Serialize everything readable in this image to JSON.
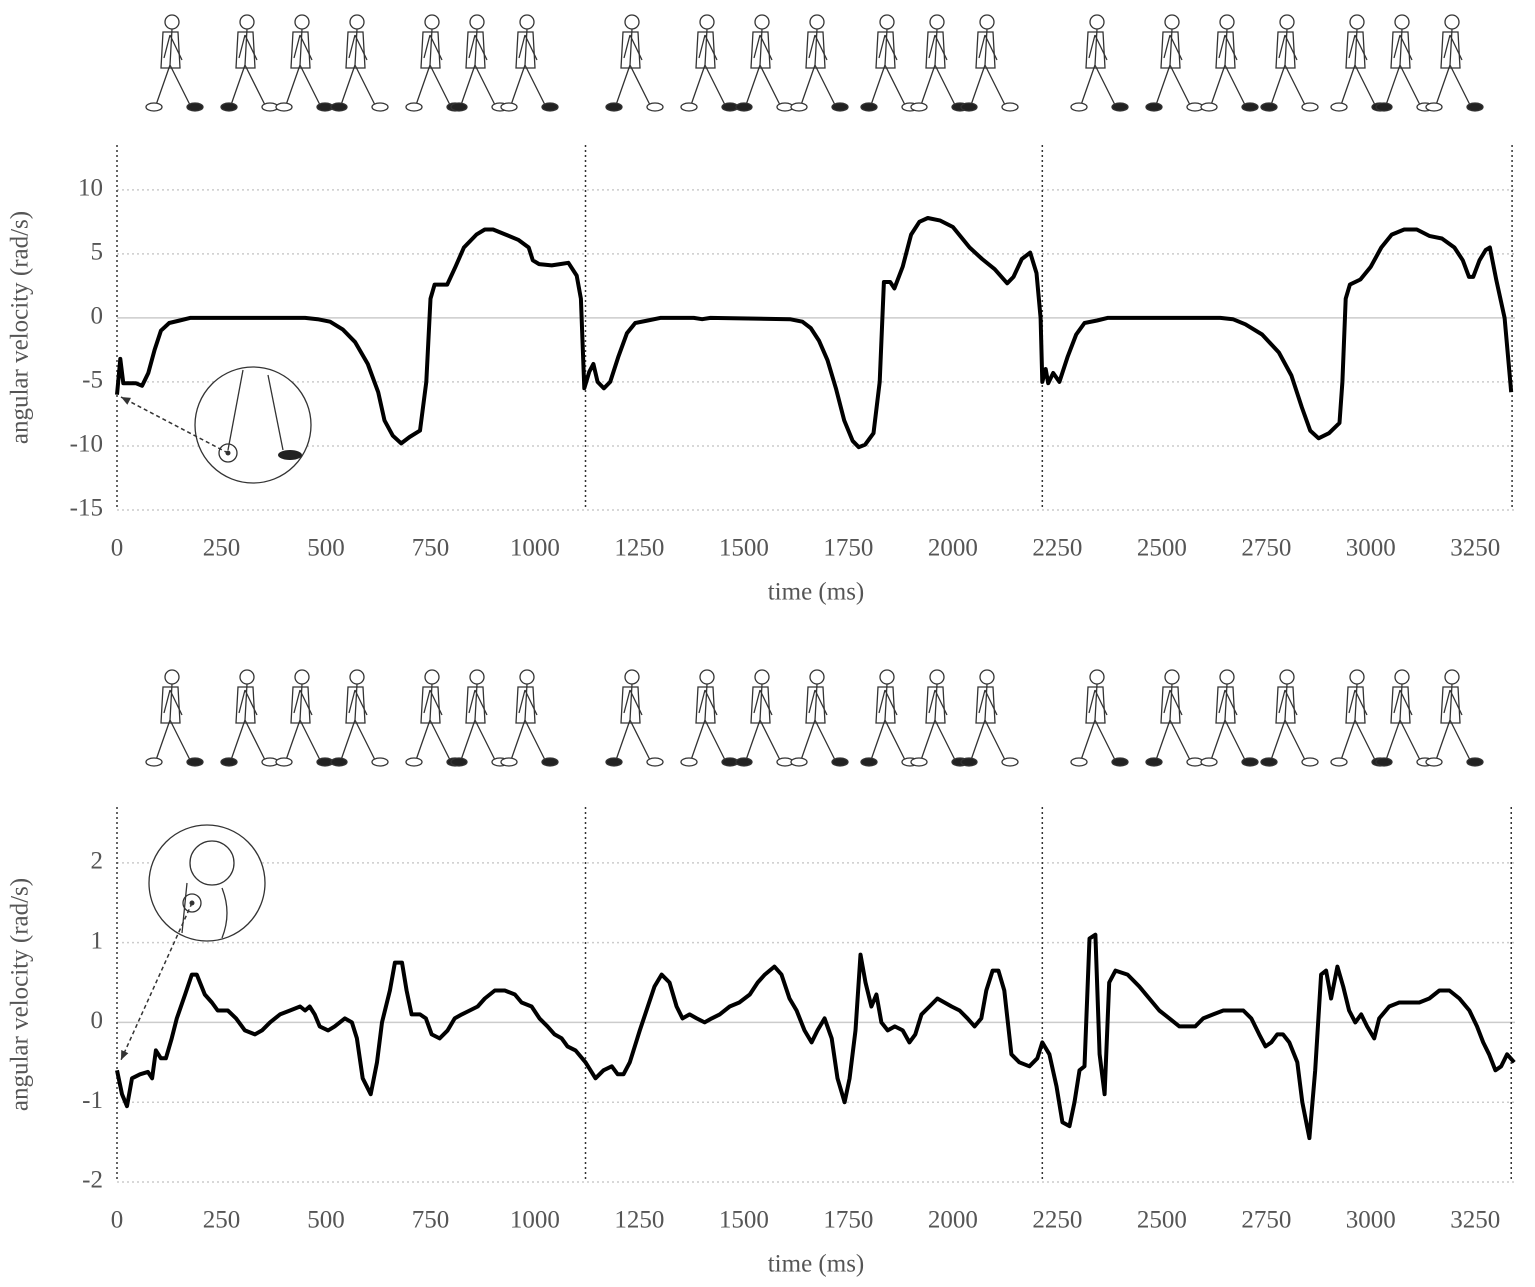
{
  "chart_data": [
    {
      "type": "line",
      "xlabel": "time (ms)",
      "ylabel": "angular velocity (rad/s)",
      "xlim": [
        0,
        3345
      ],
      "ylim": [
        -15,
        13.5
      ],
      "xticks": [
        0,
        250,
        500,
        750,
        1000,
        1250,
        1500,
        1750,
        2000,
        2250,
        2500,
        2750,
        3000,
        3250
      ],
      "yticks": [
        -15,
        -10,
        -5,
        0,
        5,
        10
      ],
      "grid": true,
      "cycle_lines": [
        0,
        1121,
        2214,
        3338
      ],
      "x": [
        0,
        8,
        15,
        45,
        60,
        75,
        90,
        105,
        125,
        150,
        175,
        450,
        480,
        510,
        540,
        570,
        600,
        625,
        640,
        660,
        680,
        700,
        725,
        740,
        750,
        760,
        790,
        810,
        830,
        860,
        880,
        900,
        930,
        960,
        985,
        995,
        1010,
        1040,
        1060,
        1080,
        1100,
        1110,
        1118,
        1130,
        1140,
        1150,
        1165,
        1180,
        1200,
        1220,
        1240,
        1270,
        1300,
        1380,
        1400,
        1420,
        1610,
        1640,
        1660,
        1680,
        1700,
        1720,
        1740,
        1760,
        1775,
        1790,
        1810,
        1825,
        1835,
        1850,
        1860,
        1880,
        1900,
        1920,
        1940,
        1970,
        2000,
        2040,
        2070,
        2100,
        2130,
        2145,
        2165,
        2185,
        2200,
        2210,
        2214,
        2222,
        2228,
        2240,
        2255,
        2275,
        2295,
        2315,
        2345,
        2370,
        2640,
        2670,
        2700,
        2740,
        2780,
        2810,
        2835,
        2855,
        2875,
        2900,
        2925,
        2932,
        2940,
        2950,
        2975,
        3000,
        3025,
        3050,
        3080,
        3110,
        3140,
        3170,
        3200,
        3220,
        3235,
        3245,
        3260,
        3275,
        3285,
        3300,
        3320,
        3336
      ],
      "series": [
        {
          "color": "#000000",
          "values": [
            -6,
            -3.2,
            -5.1,
            -5.1,
            -5.3,
            -4.3,
            -2.5,
            -1,
            -0.4,
            -0.2,
            0,
            0,
            -0.1,
            -0.3,
            -0.9,
            -1.9,
            -3.6,
            -5.8,
            -8,
            -9.2,
            -9.8,
            -9.3,
            -8.8,
            -5,
            1.5,
            2.6,
            2.6,
            4,
            5.5,
            6.5,
            6.9,
            6.9,
            6.5,
            6.1,
            5.5,
            4.5,
            4.2,
            4.1,
            4.2,
            4.3,
            3.3,
            1.5,
            -5.5,
            -4.2,
            -3.6,
            -5,
            -5.5,
            -5,
            -3,
            -1.2,
            -0.4,
            -0.2,
            0,
            0,
            -0.1,
            0,
            -0.1,
            -0.3,
            -0.8,
            -1.8,
            -3.3,
            -5.5,
            -8,
            -9.6,
            -10.1,
            -9.9,
            -9,
            -5,
            2.8,
            2.8,
            2.3,
            4,
            6.5,
            7.5,
            7.8,
            7.6,
            7.1,
            5.5,
            4.6,
            3.8,
            2.7,
            3.2,
            4.6,
            5.1,
            3.5,
            0,
            -5,
            -4,
            -5.1,
            -4.3,
            -5,
            -3,
            -1.3,
            -0.4,
            -0.2,
            0,
            0,
            -0.1,
            -0.5,
            -1.3,
            -2.7,
            -4.5,
            -7,
            -8.8,
            -9.4,
            -9,
            -8.2,
            -5,
            1.5,
            2.6,
            3,
            4,
            5.5,
            6.5,
            6.9,
            6.9,
            6.4,
            6.2,
            5.5,
            4.5,
            3.2,
            3.2,
            4.5,
            5.3,
            5.5,
            3,
            0,
            -5.8
          ]
        }
      ]
    },
    {
      "type": "line",
      "xlabel": "time (ms)",
      "ylabel": "angular velocity (rad/s)",
      "xlim": [
        0,
        3345
      ],
      "ylim": [
        -2,
        2.7
      ],
      "xticks": [
        0,
        250,
        500,
        750,
        1000,
        1250,
        1500,
        1750,
        2000,
        2250,
        2500,
        2750,
        3000,
        3250
      ],
      "yticks": [
        -2,
        -1,
        0,
        1,
        2
      ],
      "grid": true,
      "cycle_lines": [
        0,
        1121,
        2214,
        3336
      ],
      "x": [
        0,
        12,
        24,
        36,
        55,
        74,
        84,
        93,
        105,
        117,
        131,
        143,
        163,
        179,
        191,
        210,
        227,
        241,
        265,
        285,
        306,
        330,
        347,
        366,
        390,
        414,
        438,
        450,
        461,
        473,
        485,
        505,
        521,
        545,
        562,
        574,
        588,
        607,
        622,
        634,
        653,
        665,
        682,
        693,
        705,
        725,
        739,
        753,
        772,
        791,
        808,
        825,
        844,
        863,
        880,
        904,
        928,
        952,
        968,
        992,
        1011,
        1030,
        1047,
        1064,
        1078,
        1097,
        1121,
        1145,
        1164,
        1184,
        1198,
        1212,
        1227,
        1251,
        1270,
        1286,
        1303,
        1322,
        1339,
        1353,
        1370,
        1387,
        1406,
        1423,
        1442,
        1466,
        1489,
        1514,
        1533,
        1550,
        1573,
        1590,
        1609,
        1626,
        1645,
        1662,
        1676,
        1693,
        1710,
        1724,
        1741,
        1753,
        1767,
        1779,
        1791,
        1805,
        1817,
        1829,
        1844,
        1861,
        1880,
        1896,
        1910,
        1925,
        1944,
        1963,
        1980,
        1997,
        2016,
        2035,
        2052,
        2068,
        2080,
        2095,
        2109,
        2123,
        2140,
        2159,
        2183,
        2202,
        2214,
        2231,
        2248,
        2262,
        2279,
        2291,
        2303,
        2315,
        2327,
        2341,
        2351,
        2363,
        2374,
        2389,
        2418,
        2446,
        2470,
        2494,
        2518,
        2542,
        2561,
        2580,
        2599,
        2623,
        2647,
        2671,
        2695,
        2714,
        2733,
        2748,
        2762,
        2776,
        2790,
        2805,
        2824,
        2836,
        2853,
        2867,
        2881,
        2893,
        2905,
        2920,
        2934,
        2948,
        2963,
        2977,
        2991,
        3008,
        3020,
        3044,
        3068,
        3116,
        3140,
        3164,
        3188,
        3212,
        3236,
        3254,
        3269,
        3283,
        3298,
        3312,
        3326,
        3343
      ],
      "series": [
        {
          "color": "#000000",
          "values": [
            -0.6,
            -0.9,
            -1.05,
            -0.7,
            -0.65,
            -0.62,
            -0.7,
            -0.35,
            -0.45,
            -0.45,
            -0.2,
            0.05,
            0.35,
            0.6,
            0.6,
            0.35,
            0.25,
            0.15,
            0.15,
            0.05,
            -0.1,
            -0.15,
            -0.1,
            0,
            0.1,
            0.15,
            0.2,
            0.15,
            0.2,
            0.1,
            -0.05,
            -0.1,
            -0.05,
            0.05,
            0,
            -0.2,
            -0.7,
            -0.9,
            -0.5,
            0,
            0.4,
            0.75,
            0.75,
            0.4,
            0.1,
            0.1,
            0.05,
            -0.15,
            -0.2,
            -0.1,
            0.05,
            0.1,
            0.15,
            0.2,
            0.3,
            0.4,
            0.4,
            0.35,
            0.25,
            0.2,
            0.05,
            -0.05,
            -0.15,
            -0.2,
            -0.3,
            -0.35,
            -0.5,
            -0.7,
            -0.6,
            -0.55,
            -0.65,
            -0.65,
            -0.5,
            -0.1,
            0.2,
            0.45,
            0.6,
            0.5,
            0.2,
            0.05,
            0.1,
            0.05,
            0,
            0.05,
            0.1,
            0.2,
            0.25,
            0.35,
            0.5,
            0.6,
            0.7,
            0.6,
            0.3,
            0.15,
            -0.1,
            -0.25,
            -0.1,
            0.05,
            -0.2,
            -0.7,
            -1,
            -0.7,
            -0.1,
            0.85,
            0.5,
            0.2,
            0.35,
            0,
            -0.1,
            -0.05,
            -0.1,
            -0.25,
            -0.15,
            0.1,
            0.2,
            0.3,
            0.25,
            0.2,
            0.15,
            0.05,
            -0.05,
            0.05,
            0.4,
            0.65,
            0.65,
            0.4,
            -0.4,
            -0.5,
            -0.55,
            -0.45,
            -0.25,
            -0.4,
            -0.8,
            -1.25,
            -1.3,
            -1,
            -0.6,
            -0.55,
            1.05,
            1.1,
            -0.4,
            -0.9,
            0.5,
            0.65,
            0.6,
            0.45,
            0.3,
            0.15,
            0.05,
            -0.05,
            -0.05,
            -0.05,
            0.05,
            0.1,
            0.15,
            0.15,
            0.15,
            0.05,
            -0.15,
            -0.3,
            -0.25,
            -0.15,
            -0.15,
            -0.25,
            -0.5,
            -1,
            -1.45,
            -0.6,
            0.6,
            0.65,
            0.3,
            0.7,
            0.45,
            0.15,
            0,
            0.1,
            -0.05,
            -0.2,
            0.05,
            0.2,
            0.25,
            0.25,
            0.3,
            0.4,
            0.4,
            0.3,
            0.15,
            -0.05,
            -0.25,
            -0.4,
            -0.6,
            -0.55,
            -0.4,
            -0.5
          ]
        }
      ]
    }
  ]
}
